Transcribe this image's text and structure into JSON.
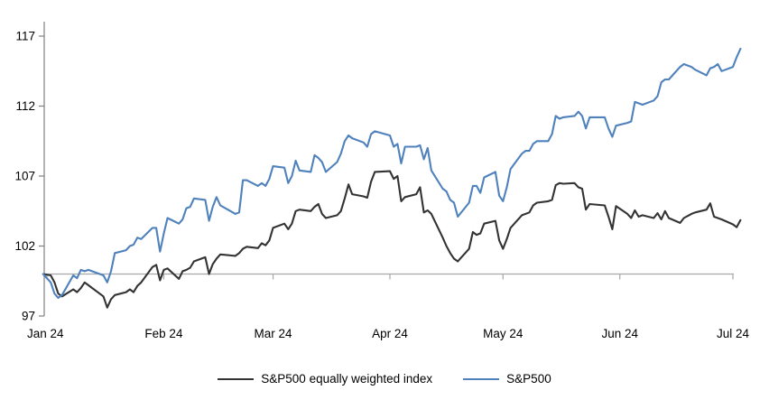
{
  "chart_data": {
    "type": "line",
    "title": "",
    "xlabel": "",
    "ylabel": "",
    "grid": "horizontal baseline at 100 only",
    "legend_position": "bottom-center",
    "axis_color": "#808080",
    "baseline_color": "#a6a6a6",
    "label_color": "#000000",
    "y_axis": {
      "min": 97,
      "max": 117,
      "ticks": [
        97,
        102,
        107,
        112,
        117
      ],
      "baseline_value": 100
    },
    "x_axis": {
      "unit": "day of year 2024",
      "tick_labels": [
        "Jan 24",
        "Feb 24",
        "Mar 24",
        "Apr 24",
        "May 24",
        "Jun 24",
        "Jul 24"
      ],
      "tick_days": [
        1,
        32,
        61,
        92,
        122,
        153,
        183
      ],
      "range_days": [
        0,
        185
      ]
    },
    "days": [
      0,
      2,
      3,
      4,
      5,
      8,
      9,
      10,
      11,
      12,
      16,
      17,
      18,
      19,
      22,
      23,
      24,
      25,
      26,
      29,
      30,
      31,
      32,
      33,
      36,
      37,
      38,
      39,
      40,
      43,
      44,
      45,
      46,
      47,
      51,
      52,
      53,
      54,
      57,
      58,
      59,
      60,
      61,
      64,
      65,
      66,
      67,
      68,
      71,
      72,
      73,
      74,
      75,
      78,
      79,
      80,
      81,
      82,
      85,
      86,
      87,
      88,
      92,
      93,
      94,
      95,
      96,
      99,
      100,
      101,
      102,
      103,
      106,
      107,
      108,
      109,
      110,
      113,
      114,
      115,
      116,
      117,
      120,
      121,
      122,
      123,
      124,
      127,
      128,
      129,
      130,
      131,
      134,
      135,
      136,
      137,
      138,
      141,
      142,
      143,
      144,
      145,
      149,
      150,
      151,
      152,
      155,
      156,
      157,
      158,
      159,
      162,
      163,
      164,
      165,
      166,
      169,
      170,
      172,
      173,
      176,
      177,
      178,
      179,
      180,
      183,
      184,
      185
    ],
    "series": [
      {
        "name": "S&P500 equally weighted index",
        "color": "#333333",
        "values": [
          100.0,
          99.9,
          99.4,
          98.6,
          98.4,
          98.9,
          98.7,
          99.0,
          99.4,
          99.2,
          98.4,
          97.6,
          98.2,
          98.5,
          98.7,
          98.9,
          98.7,
          99.15,
          99.4,
          100.5,
          100.65,
          99.55,
          100.3,
          100.4,
          99.65,
          100.2,
          100.3,
          100.45,
          100.9,
          101.2,
          100.0,
          100.7,
          101.1,
          101.4,
          101.3,
          101.5,
          101.8,
          101.95,
          101.85,
          102.2,
          102.05,
          102.4,
          103.3,
          103.6,
          103.2,
          103.6,
          104.5,
          104.6,
          104.5,
          104.8,
          105.0,
          104.3,
          104.0,
          104.2,
          104.5,
          105.4,
          106.4,
          105.7,
          105.55,
          105.45,
          106.6,
          107.3,
          107.35,
          106.8,
          107.0,
          105.2,
          105.5,
          105.7,
          106.2,
          104.4,
          104.55,
          104.3,
          102.6,
          102.0,
          101.5,
          101.1,
          100.9,
          101.8,
          103.0,
          102.8,
          102.9,
          103.6,
          103.8,
          102.4,
          101.8,
          102.5,
          103.3,
          104.2,
          104.3,
          104.4,
          104.9,
          105.1,
          105.2,
          105.3,
          106.35,
          106.5,
          106.45,
          106.5,
          106.2,
          106.1,
          104.6,
          105.0,
          104.9,
          104.1,
          103.2,
          104.85,
          104.3,
          104.0,
          104.55,
          104.1,
          104.2,
          104.0,
          104.35,
          103.9,
          104.5,
          104.0,
          103.65,
          104.0,
          104.3,
          104.4,
          104.6,
          105.05,
          104.1,
          104.0,
          103.9,
          103.55,
          103.35,
          103.85
        ]
      },
      {
        "name": "S&P500",
        "color": "#4f81bd",
        "values": [
          100.0,
          99.4,
          98.6,
          98.3,
          98.5,
          99.9,
          99.7,
          100.3,
          100.2,
          100.3,
          99.9,
          99.4,
          100.2,
          101.5,
          101.7,
          102.0,
          102.1,
          102.6,
          102.5,
          103.3,
          103.3,
          101.6,
          102.9,
          104.0,
          103.6,
          103.9,
          104.7,
          104.8,
          105.4,
          105.3,
          103.8,
          104.8,
          105.5,
          104.9,
          104.3,
          104.4,
          106.7,
          106.7,
          106.3,
          106.5,
          106.3,
          106.8,
          107.7,
          107.6,
          106.5,
          107.0,
          108.1,
          107.4,
          107.3,
          108.5,
          108.3,
          108.0,
          107.3,
          108.0,
          108.6,
          109.5,
          109.9,
          109.7,
          109.4,
          109.1,
          110.0,
          110.2,
          109.9,
          109.1,
          109.3,
          107.9,
          109.1,
          109.1,
          109.2,
          108.2,
          109.0,
          107.4,
          106.1,
          105.9,
          105.3,
          105.1,
          104.1,
          105.1,
          106.3,
          106.3,
          105.8,
          106.9,
          107.3,
          105.6,
          105.2,
          106.2,
          107.5,
          108.6,
          108.8,
          108.8,
          109.3,
          109.5,
          109.5,
          110.0,
          111.3,
          111.1,
          111.2,
          111.3,
          111.6,
          111.3,
          110.4,
          111.2,
          111.2,
          110.4,
          109.8,
          110.6,
          110.8,
          110.9,
          112.3,
          112.2,
          112.1,
          112.4,
          112.7,
          113.7,
          113.9,
          113.9,
          114.8,
          115.0,
          114.8,
          114.6,
          114.2,
          114.7,
          114.8,
          115.0,
          114.5,
          114.8,
          115.5,
          116.1
        ]
      }
    ]
  }
}
